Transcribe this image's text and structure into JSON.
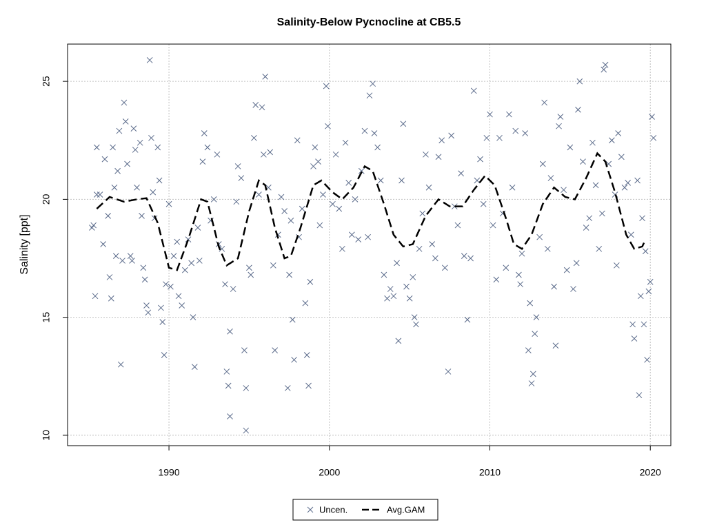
{
  "chart_data": {
    "type": "scatter",
    "title": "Salinity-Below Pycnocline at CB5.5",
    "ylabel": "Salinity [ppt]",
    "xlim": [
      1983.68,
      2021.28
    ],
    "ylim": [
      9.56,
      26.58
    ],
    "xticks": [
      1990,
      2000,
      2010,
      2020
    ],
    "yticks": [
      10,
      15,
      20,
      25
    ],
    "grid": true,
    "legend": "bottom",
    "series": [
      {
        "name": "Uncen.",
        "color": "#5a6a8a",
        "marker": "x",
        "x": [
          1985.2,
          1985.3,
          1985.4,
          1985.5,
          1985.5,
          1985.7,
          1985.9,
          1986.0,
          1986.2,
          1986.3,
          1986.4,
          1986.5,
          1986.6,
          1986.7,
          1986.8,
          1986.9,
          1987.0,
          1987.1,
          1987.2,
          1987.3,
          1987.4,
          1987.6,
          1987.7,
          1987.8,
          1987.9,
          1988.0,
          1988.2,
          1988.3,
          1988.4,
          1988.5,
          1988.6,
          1988.7,
          1988.8,
          1988.9,
          1989.0,
          1989.1,
          1989.3,
          1989.4,
          1989.5,
          1989.6,
          1989.7,
          1989.8,
          1990.0,
          1990.1,
          1990.3,
          1990.5,
          1990.6,
          1990.8,
          1991.0,
          1991.2,
          1991.4,
          1991.5,
          1991.6,
          1991.8,
          1991.9,
          1992.1,
          1992.2,
          1992.4,
          1992.6,
          1992.8,
          1993.0,
          1993.1,
          1993.3,
          1993.5,
          1993.6,
          1993.7,
          1993.8,
          1993.8,
          1994.0,
          1994.2,
          1994.3,
          1994.5,
          1994.7,
          1994.8,
          1994.8,
          1995.0,
          1995.1,
          1995.3,
          1995.4,
          1995.6,
          1995.8,
          1995.9,
          1996.0,
          1996.2,
          1996.3,
          1996.5,
          1996.6,
          1996.8,
          1997.0,
          1997.2,
          1997.4,
          1997.5,
          1997.6,
          1997.7,
          1997.8,
          1998.0,
          1998.1,
          1998.3,
          1998.5,
          1998.6,
          1998.7,
          1998.8,
          1999.0,
          1999.1,
          1999.3,
          1999.4,
          1999.6,
          1999.8,
          1999.9,
          2000.2,
          2000.4,
          2000.6,
          2000.8,
          2001.0,
          2001.2,
          2001.4,
          2001.6,
          2001.8,
          2002.0,
          2002.2,
          2002.4,
          2002.5,
          2002.7,
          2002.8,
          2003.0,
          2003.2,
          2003.4,
          2003.6,
          2003.8,
          2004.0,
          2004.2,
          2004.3,
          2004.5,
          2004.6,
          2004.8,
          2005.0,
          2005.2,
          2005.3,
          2005.4,
          2005.6,
          2005.8,
          2006.0,
          2006.2,
          2006.4,
          2006.6,
          2006.8,
          2007.0,
          2007.2,
          2007.4,
          2007.6,
          2007.8,
          2008.0,
          2008.2,
          2008.4,
          2008.6,
          2008.8,
          2009.0,
          2009.2,
          2009.4,
          2009.6,
          2009.8,
          2010.0,
          2010.2,
          2010.4,
          2010.6,
          2010.8,
          2011.0,
          2011.2,
          2011.4,
          2011.6,
          2011.8,
          2011.9,
          2012.0,
          2012.2,
          2012.4,
          2012.5,
          2012.6,
          2012.7,
          2012.8,
          2012.9,
          2013.1,
          2013.3,
          2013.4,
          2013.6,
          2013.8,
          2014.0,
          2014.1,
          2014.3,
          2014.4,
          2014.6,
          2014.8,
          2015.0,
          2015.2,
          2015.4,
          2015.5,
          2015.6,
          2015.8,
          2016.0,
          2016.2,
          2016.4,
          2016.6,
          2016.8,
          2017.0,
          2017.1,
          2017.2,
          2017.4,
          2017.6,
          2017.8,
          2017.9,
          2018.0,
          2018.2,
          2018.4,
          2018.6,
          2018.8,
          2018.9,
          2019.0,
          2019.2,
          2019.3,
          2019.4,
          2019.5,
          2019.6,
          2019.7,
          2019.8,
          2019.9,
          2020.0,
          2020.1,
          2020.2
        ],
        "values": [
          18.8,
          18.9,
          15.9,
          22.2,
          20.2,
          20.2,
          18.1,
          21.7,
          19.3,
          16.7,
          15.8,
          22.2,
          20.5,
          17.6,
          21.2,
          22.9,
          13.0,
          17.4,
          24.1,
          23.3,
          21.5,
          17.6,
          17.4,
          23.0,
          22.1,
          20.5,
          22.4,
          19.3,
          17.1,
          16.6,
          15.5,
          15.2,
          25.9,
          22.6,
          20.3,
          19.2,
          22.2,
          20.8,
          15.4,
          14.8,
          13.4,
          16.4,
          19.8,
          16.3,
          17.6,
          18.2,
          15.9,
          15.5,
          17.0,
          18.3,
          17.3,
          15.0,
          12.9,
          18.8,
          17.4,
          21.6,
          22.8,
          22.2,
          19.1,
          20.0,
          21.9,
          18.1,
          17.9,
          16.4,
          12.7,
          12.1,
          14.4,
          10.8,
          16.2,
          19.9,
          21.4,
          20.9,
          13.6,
          12.0,
          10.2,
          17.1,
          16.8,
          22.6,
          24.0,
          20.2,
          23.9,
          21.9,
          25.2,
          20.5,
          22.0,
          17.2,
          13.6,
          18.5,
          20.1,
          19.5,
          12.0,
          16.8,
          19.1,
          14.9,
          13.2,
          22.5,
          18.4,
          19.6,
          15.6,
          13.4,
          12.1,
          16.5,
          21.4,
          22.2,
          21.6,
          18.9,
          20.2,
          24.8,
          23.1,
          19.8,
          21.9,
          19.6,
          17.9,
          22.4,
          20.7,
          18.5,
          20.0,
          18.3,
          21.2,
          22.9,
          18.4,
          24.4,
          24.9,
          22.8,
          22.2,
          20.8,
          16.8,
          15.8,
          16.2,
          15.9,
          17.3,
          14.0,
          20.8,
          23.2,
          16.3,
          15.8,
          16.7,
          15.0,
          14.7,
          17.9,
          19.4,
          21.9,
          20.5,
          18.1,
          17.5,
          21.8,
          22.5,
          17.1,
          12.7,
          22.7,
          19.7,
          18.9,
          21.1,
          17.6,
          14.9,
          17.5,
          24.6,
          20.8,
          21.7,
          19.8,
          22.6,
          23.6,
          18.9,
          16.6,
          22.6,
          19.4,
          17.1,
          23.6,
          20.5,
          22.9,
          16.8,
          16.4,
          17.7,
          22.8,
          13.6,
          15.6,
          12.2,
          12.6,
          14.3,
          15.0,
          18.4,
          21.5,
          24.1,
          17.9,
          20.9,
          16.3,
          13.8,
          23.1,
          23.5,
          20.4,
          17.0,
          22.2,
          16.2,
          17.3,
          23.8,
          25.0,
          21.6,
          18.8,
          19.2,
          22.4,
          20.6,
          17.9,
          19.4,
          25.5,
          25.7,
          21.5,
          22.5,
          20.2,
          17.2,
          22.8,
          21.8,
          20.5,
          20.7,
          18.5,
          14.7,
          14.1,
          20.8,
          11.7,
          15.9,
          19.2,
          14.7,
          17.8,
          13.2,
          16.1,
          16.5,
          23.5,
          22.6
        ]
      },
      {
        "name": "Avg.GAM",
        "color": "#000000",
        "linestyle": "dashed",
        "x": [
          1985.5,
          1986.3,
          1987.2,
          1988.0,
          1988.6,
          1989.3,
          1990.0,
          1990.5,
          1991.2,
          1992.0,
          1992.4,
          1993.1,
          1993.6,
          1994.3,
          1995.0,
          1995.6,
          1996.0,
          1996.6,
          1997.2,
          1997.6,
          1998.2,
          1999.0,
          1999.5,
          2000.2,
          2000.8,
          2001.5,
          2002.2,
          2002.7,
          2003.4,
          2004.0,
          2004.6,
          2005.2,
          2006.0,
          2006.8,
          2007.5,
          2008.3,
          2009.0,
          2009.7,
          2010.3,
          2011.0,
          2011.5,
          2012.0,
          2012.6,
          2013.3,
          2014.0,
          2014.7,
          2015.3,
          2016.0,
          2016.7,
          2017.2,
          2017.8,
          2018.5,
          2019.0,
          2019.5,
          2019.7
        ],
        "values": [
          19.6,
          20.1,
          19.9,
          20.0,
          20.05,
          19.0,
          17.1,
          17.0,
          18.3,
          20.0,
          19.9,
          18.0,
          17.2,
          17.5,
          19.5,
          20.8,
          20.6,
          18.8,
          17.5,
          17.6,
          18.8,
          20.6,
          20.8,
          20.3,
          20.0,
          20.5,
          21.4,
          21.2,
          19.8,
          18.5,
          18.0,
          18.1,
          19.3,
          20.0,
          19.7,
          19.7,
          20.4,
          21.0,
          20.6,
          19.2,
          18.1,
          17.9,
          18.5,
          19.8,
          20.5,
          20.1,
          20.0,
          20.9,
          21.95,
          21.6,
          20.3,
          18.5,
          17.9,
          18.0,
          18.3
        ]
      }
    ]
  }
}
